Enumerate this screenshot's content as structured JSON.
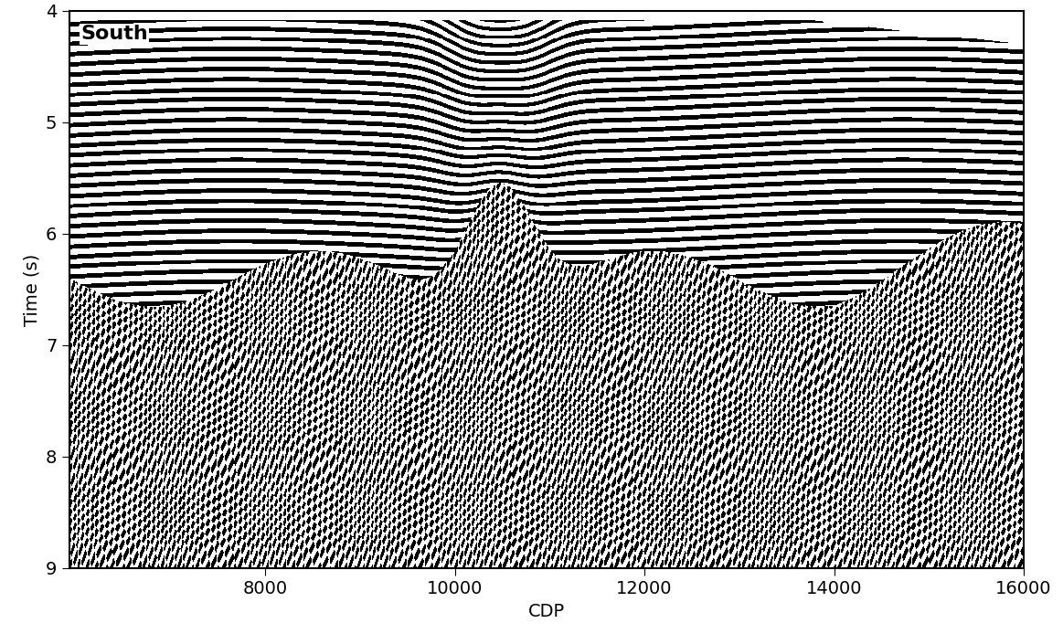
{
  "chart_data": {
    "type": "image",
    "annotation": "South",
    "x_label": "CDP",
    "y_label": "Time (s)",
    "xlim": [
      5930,
      16000
    ],
    "ylim": [
      9,
      4
    ],
    "xticks": [
      8000,
      10000,
      12000,
      14000,
      16000
    ],
    "yticks": [
      4,
      5,
      6,
      7,
      8,
      9
    ]
  }
}
